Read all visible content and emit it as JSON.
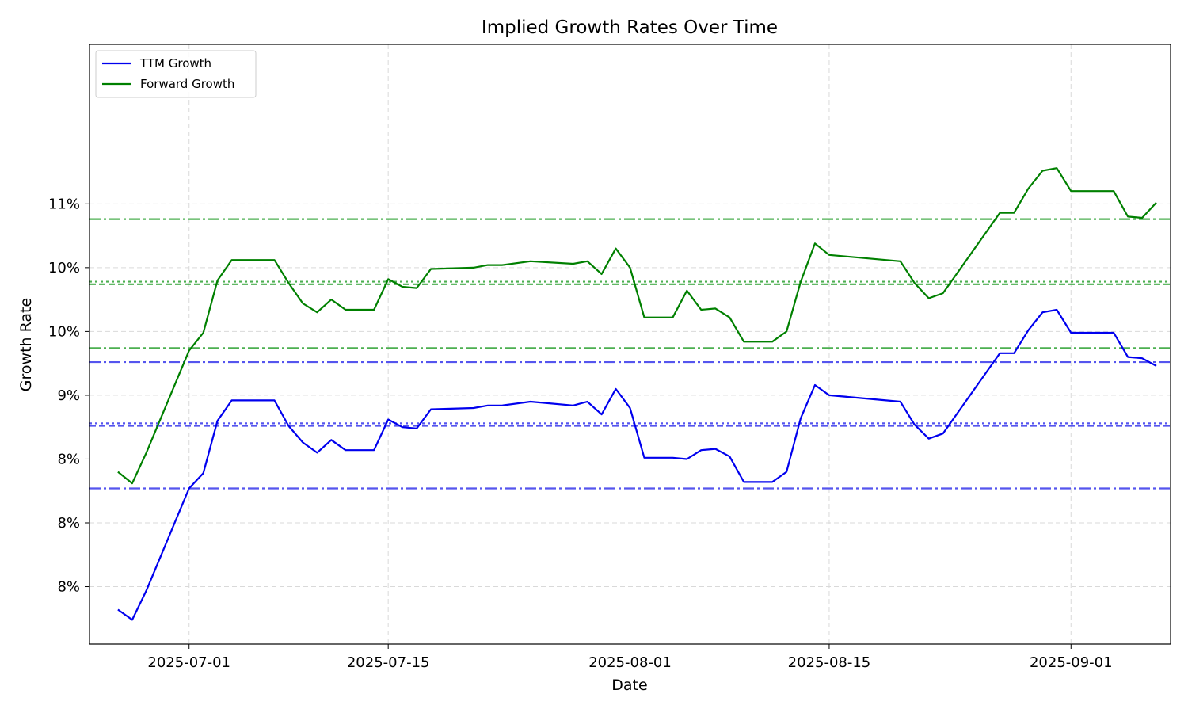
{
  "chart_data": {
    "type": "line",
    "title": "Implied Growth Rates Over Time",
    "xlabel": "Date",
    "ylabel": "Growth Rate",
    "xlim": [
      "2025-06-24",
      "2025-09-08"
    ],
    "ylim": [
      7.05,
      11.75
    ],
    "grid": true,
    "legend_position": "top-left",
    "x_ticks": [
      {
        "date": "2025-07-01",
        "label": "2025-07-01"
      },
      {
        "date": "2025-07-15",
        "label": "2025-07-15"
      },
      {
        "date": "2025-08-01",
        "label": "2025-08-01"
      },
      {
        "date": "2025-08-15",
        "label": "2025-08-15"
      },
      {
        "date": "2025-09-01",
        "label": "2025-09-01"
      }
    ],
    "y_ticks": [
      {
        "value": 7.5,
        "label": "8%"
      },
      {
        "value": 8.0,
        "label": "8%"
      },
      {
        "value": 8.5,
        "label": "8%"
      },
      {
        "value": 9.0,
        "label": "9%"
      },
      {
        "value": 9.5,
        "label": "10%"
      },
      {
        "value": 10.0,
        "label": "10%"
      },
      {
        "value": 10.5,
        "label": "11%"
      }
    ],
    "x": [
      "2025-06-26",
      "2025-06-27",
      "2025-06-28",
      "2025-07-01",
      "2025-07-02",
      "2025-07-03",
      "2025-07-04",
      "2025-07-07",
      "2025-07-08",
      "2025-07-09",
      "2025-07-10",
      "2025-07-11",
      "2025-07-12",
      "2025-07-14",
      "2025-07-15",
      "2025-07-16",
      "2025-07-17",
      "2025-07-18",
      "2025-07-21",
      "2025-07-22",
      "2025-07-23",
      "2025-07-25",
      "2025-07-28",
      "2025-07-29",
      "2025-07-30",
      "2025-07-31",
      "2025-08-01",
      "2025-08-02",
      "2025-08-04",
      "2025-08-05",
      "2025-08-06",
      "2025-08-07",
      "2025-08-08",
      "2025-08-09",
      "2025-08-11",
      "2025-08-12",
      "2025-08-13",
      "2025-08-14",
      "2025-08-15",
      "2025-08-20",
      "2025-08-21",
      "2025-08-22",
      "2025-08-23",
      "2025-08-27",
      "2025-08-28",
      "2025-08-29",
      "2025-08-30",
      "2025-08-31",
      "2025-09-01",
      "2025-09-04",
      "2025-09-05",
      "2025-09-06",
      "2025-09-07"
    ],
    "series": [
      {
        "name": "TTM Growth",
        "color": "#0000ee",
        "values": [
          7.32,
          7.24,
          7.47,
          8.27,
          8.39,
          8.8,
          8.96,
          8.96,
          8.76,
          8.63,
          8.55,
          8.65,
          8.57,
          8.57,
          8.81,
          8.75,
          8.74,
          8.89,
          8.9,
          8.92,
          8.92,
          8.95,
          8.92,
          8.95,
          8.85,
          9.05,
          8.9,
          8.51,
          8.51,
          8.5,
          8.57,
          8.58,
          8.52,
          8.32,
          8.32,
          8.4,
          8.82,
          9.08,
          9.0,
          8.95,
          8.77,
          8.66,
          8.7,
          9.33,
          9.33,
          9.51,
          9.65,
          9.67,
          9.49,
          9.49,
          9.3,
          9.29,
          9.23
        ]
      },
      {
        "name": "Forward Growth",
        "color": "#008000",
        "values": [
          8.4,
          8.31,
          8.55,
          9.35,
          9.49,
          9.9,
          10.06,
          10.06,
          9.88,
          9.72,
          9.65,
          9.75,
          9.67,
          9.67,
          9.91,
          9.85,
          9.84,
          9.99,
          10.0,
          10.02,
          10.02,
          10.05,
          10.03,
          10.05,
          9.95,
          10.15,
          10.0,
          9.61,
          9.61,
          9.82,
          9.67,
          9.68,
          9.61,
          9.42,
          9.42,
          9.5,
          9.89,
          10.19,
          10.1,
          10.05,
          9.88,
          9.76,
          9.8,
          10.43,
          10.43,
          10.62,
          10.76,
          10.78,
          10.6,
          10.6,
          10.4,
          10.39,
          10.51
        ]
      }
    ],
    "reference_lines": [
      {
        "value": 10.38,
        "color": "#4caf50",
        "style": "dashdot"
      },
      {
        "value": 9.89,
        "color": "#4caf50",
        "style": "dotted"
      },
      {
        "value": 9.87,
        "color": "#4caf50",
        "style": "dashed"
      },
      {
        "value": 9.37,
        "color": "#4caf50",
        "style": "dashdot"
      },
      {
        "value": 9.26,
        "color": "#5555ee",
        "style": "dashdot"
      },
      {
        "value": 8.78,
        "color": "#5555ee",
        "style": "dotted"
      },
      {
        "value": 8.76,
        "color": "#5555ee",
        "style": "dashed"
      },
      {
        "value": 8.27,
        "color": "#5555ee",
        "style": "dashdot"
      }
    ]
  }
}
